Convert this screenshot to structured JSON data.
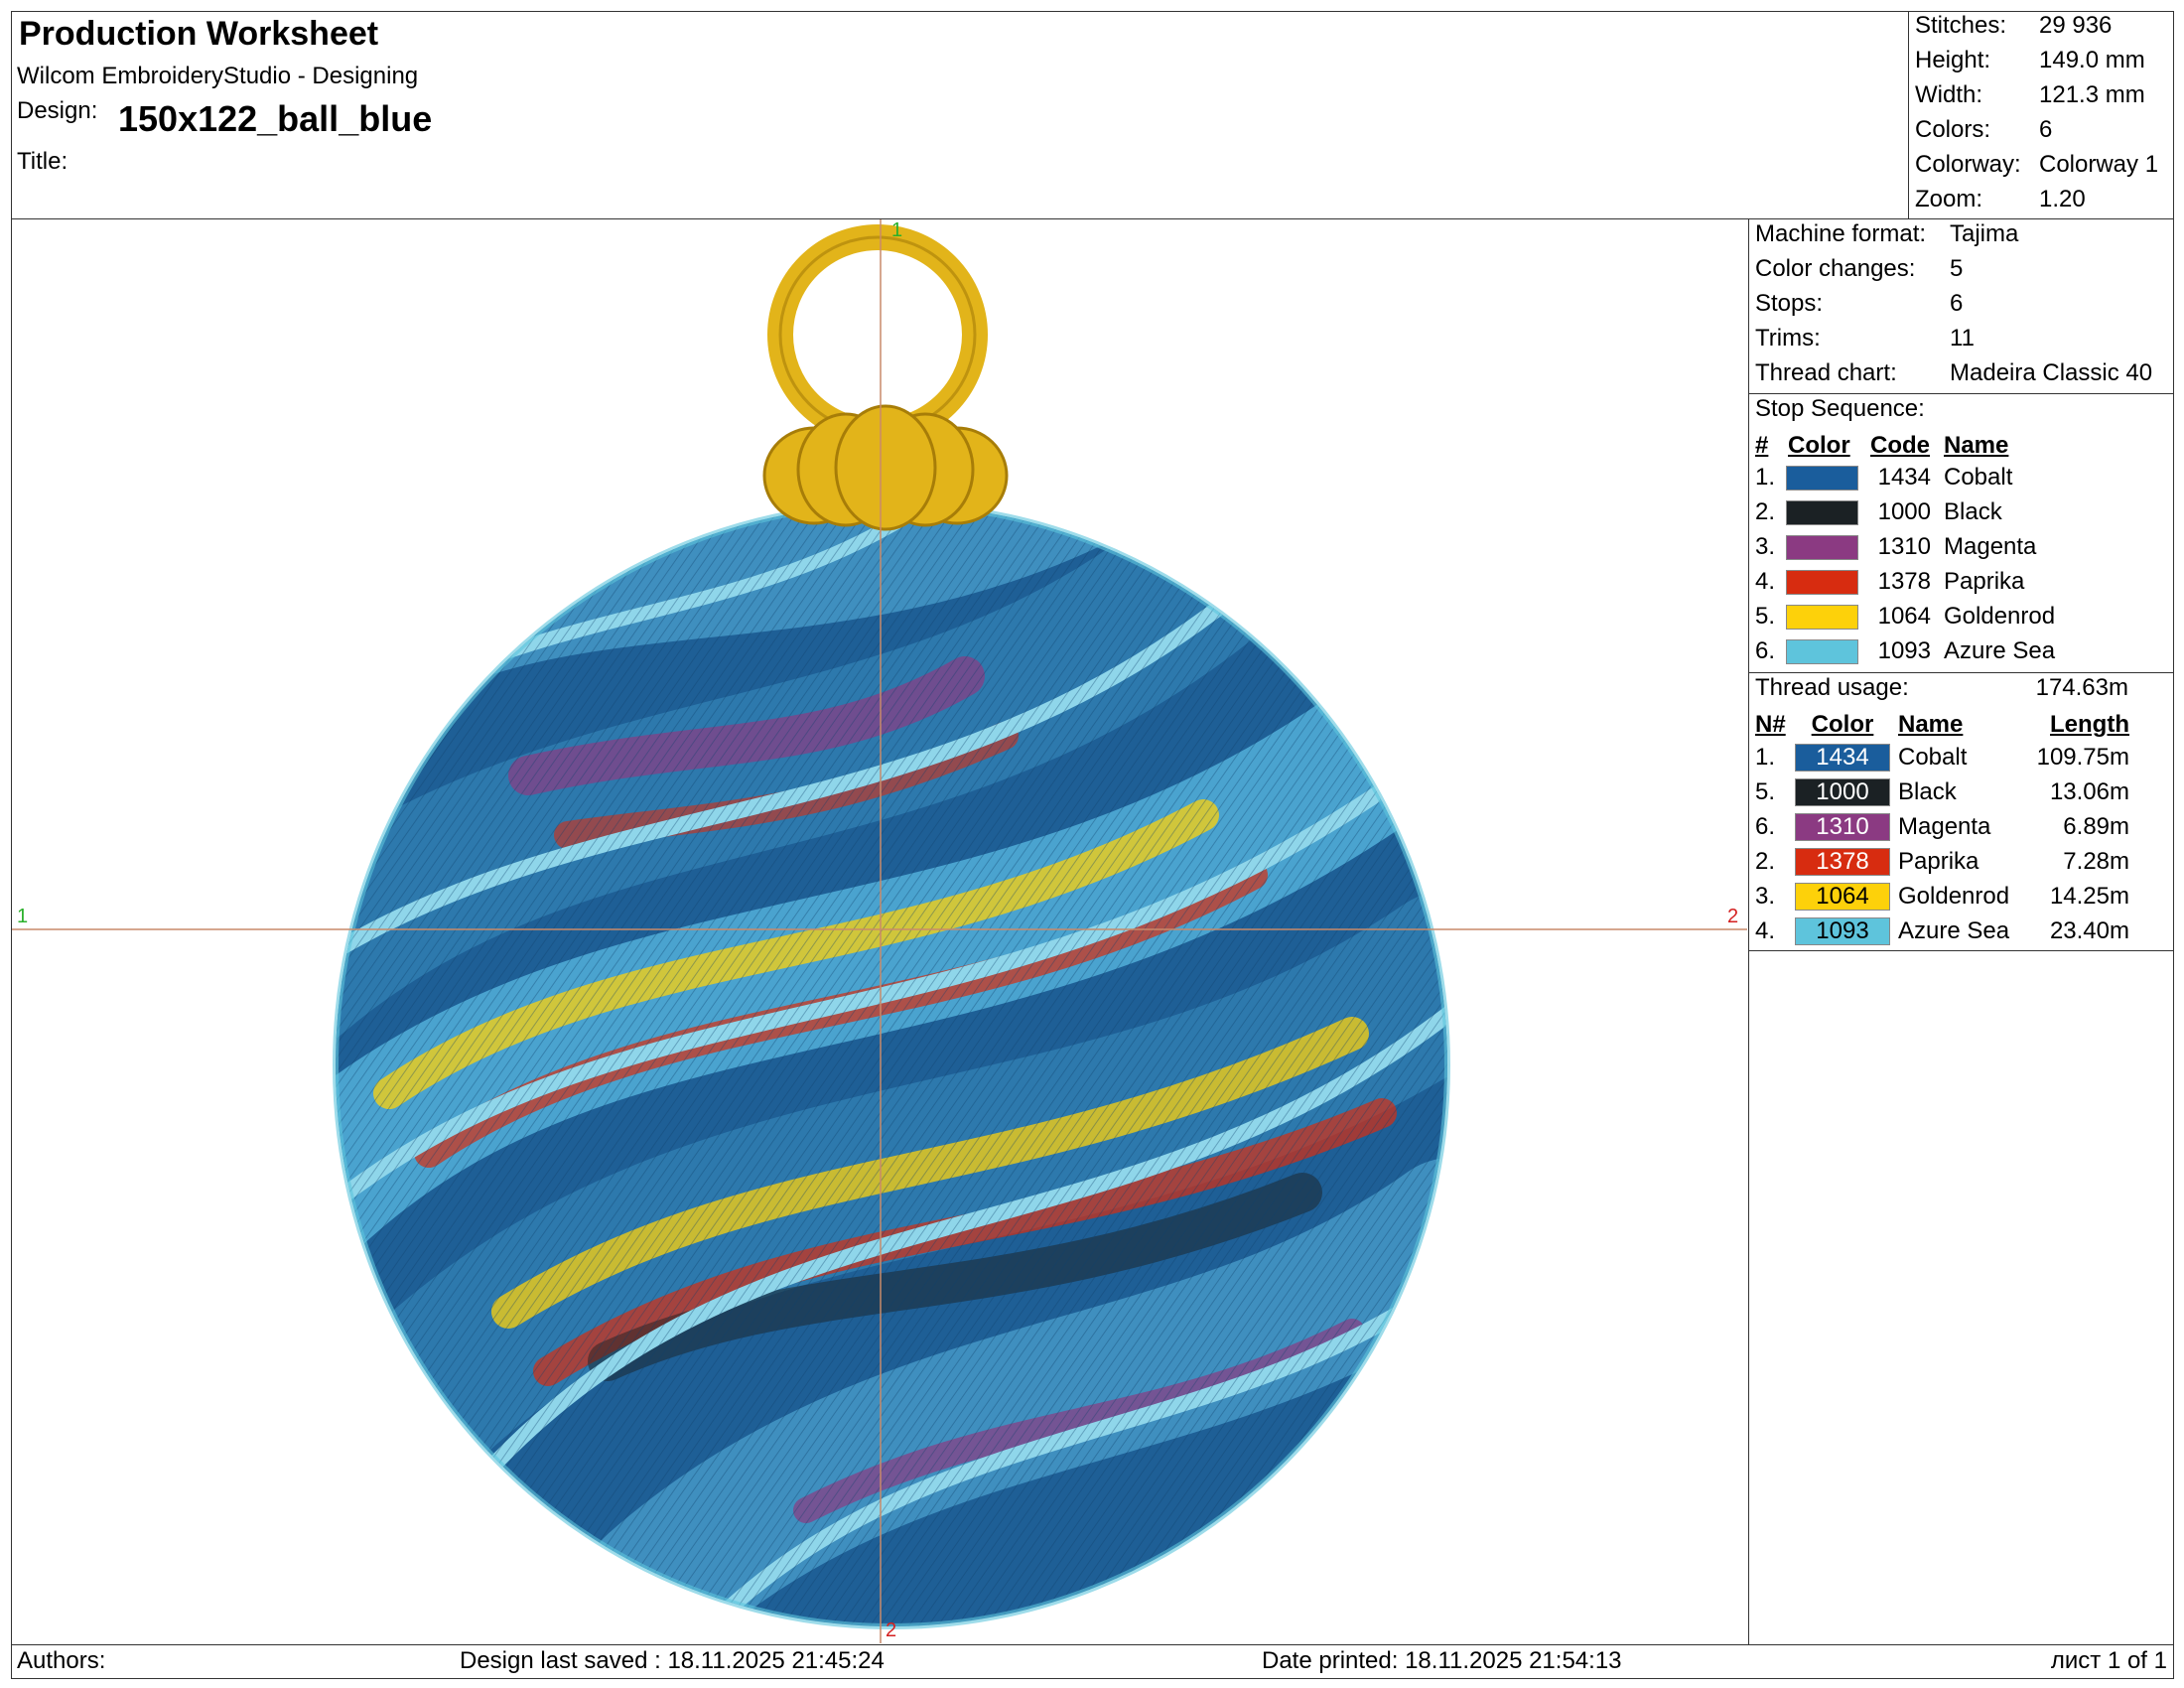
{
  "header": {
    "title": "Production Worksheet",
    "software": "Wilcom EmbroideryStudio - Designing",
    "design_label": "Design:",
    "design": "150x122_ball_blue",
    "title_label": "Title:"
  },
  "stats": [
    {
      "label": "Stitches:",
      "value": "29 936"
    },
    {
      "label": "Height:",
      "value": "149.0 mm"
    },
    {
      "label": "Width:",
      "value": "121.3 mm"
    },
    {
      "label": "Colors:",
      "value": "6"
    },
    {
      "label": "Colorway:",
      "value": "Colorway 1"
    },
    {
      "label": "Zoom:",
      "value": "1.20"
    }
  ],
  "machine": [
    {
      "label": "Machine format:",
      "value": "Tajima"
    },
    {
      "label": "Color changes:",
      "value": "5"
    },
    {
      "label": "Stops:",
      "value": "6"
    },
    {
      "label": "Trims:",
      "value": "11"
    },
    {
      "label": "Thread chart:",
      "value": "Madeira Classic 40"
    }
  ],
  "stop_sequence": {
    "heading": "Stop Sequence:",
    "columns": [
      "#",
      "Color",
      "Code",
      "Name"
    ],
    "rows": [
      {
        "num": "1.",
        "color": "#1a5d9c",
        "code": "1434",
        "name": "Cobalt"
      },
      {
        "num": "2.",
        "color": "#1b2124",
        "code": "1000",
        "name": "Black"
      },
      {
        "num": "3.",
        "color": "#8b3a82",
        "code": "1310",
        "name": "Magenta"
      },
      {
        "num": "4.",
        "color": "#d72c10",
        "code": "1378",
        "name": "Paprika"
      },
      {
        "num": "5.",
        "color": "#fdd10a",
        "code": "1064",
        "name": "Goldenrod"
      },
      {
        "num": "6.",
        "color": "#5ec4dc",
        "code": "1093",
        "name": "Azure Sea"
      }
    ]
  },
  "thread_usage": {
    "heading": "Thread usage:",
    "total": "174.63m",
    "columns": [
      "N#",
      "Color",
      "Name",
      "Length"
    ],
    "rows": [
      {
        "num": "1.",
        "color": "#1a5d9c",
        "code": "1434",
        "name": "Cobalt",
        "length": "109.75m"
      },
      {
        "num": "5.",
        "color": "#1b2124",
        "code": "1000",
        "name": "Black",
        "length": "13.06m"
      },
      {
        "num": "6.",
        "color": "#8b3a82",
        "code": "1310",
        "name": "Magenta",
        "length": "6.89m"
      },
      {
        "num": "2.",
        "color": "#d72c10",
        "code": "1378",
        "name": "Paprika",
        "length": "7.28m"
      },
      {
        "num": "3.",
        "color": "#fdd10a",
        "code": "1064",
        "name": "Goldenrod",
        "length": "14.25m"
      },
      {
        "num": "4.",
        "color": "#5ec4dc",
        "code": "1093",
        "name": "Azure Sea",
        "length": "23.40m"
      }
    ]
  },
  "canvas": {
    "top_mark": "1",
    "bottom_mark": "2",
    "left_mark": "1",
    "right_mark": "2"
  },
  "footer": {
    "authors": "Authors:",
    "saved": "Design last saved : 18.11.2025 21:45:24",
    "printed": "Date printed: 18.11.2025 21:54:13",
    "page": "лист 1 of 1"
  }
}
